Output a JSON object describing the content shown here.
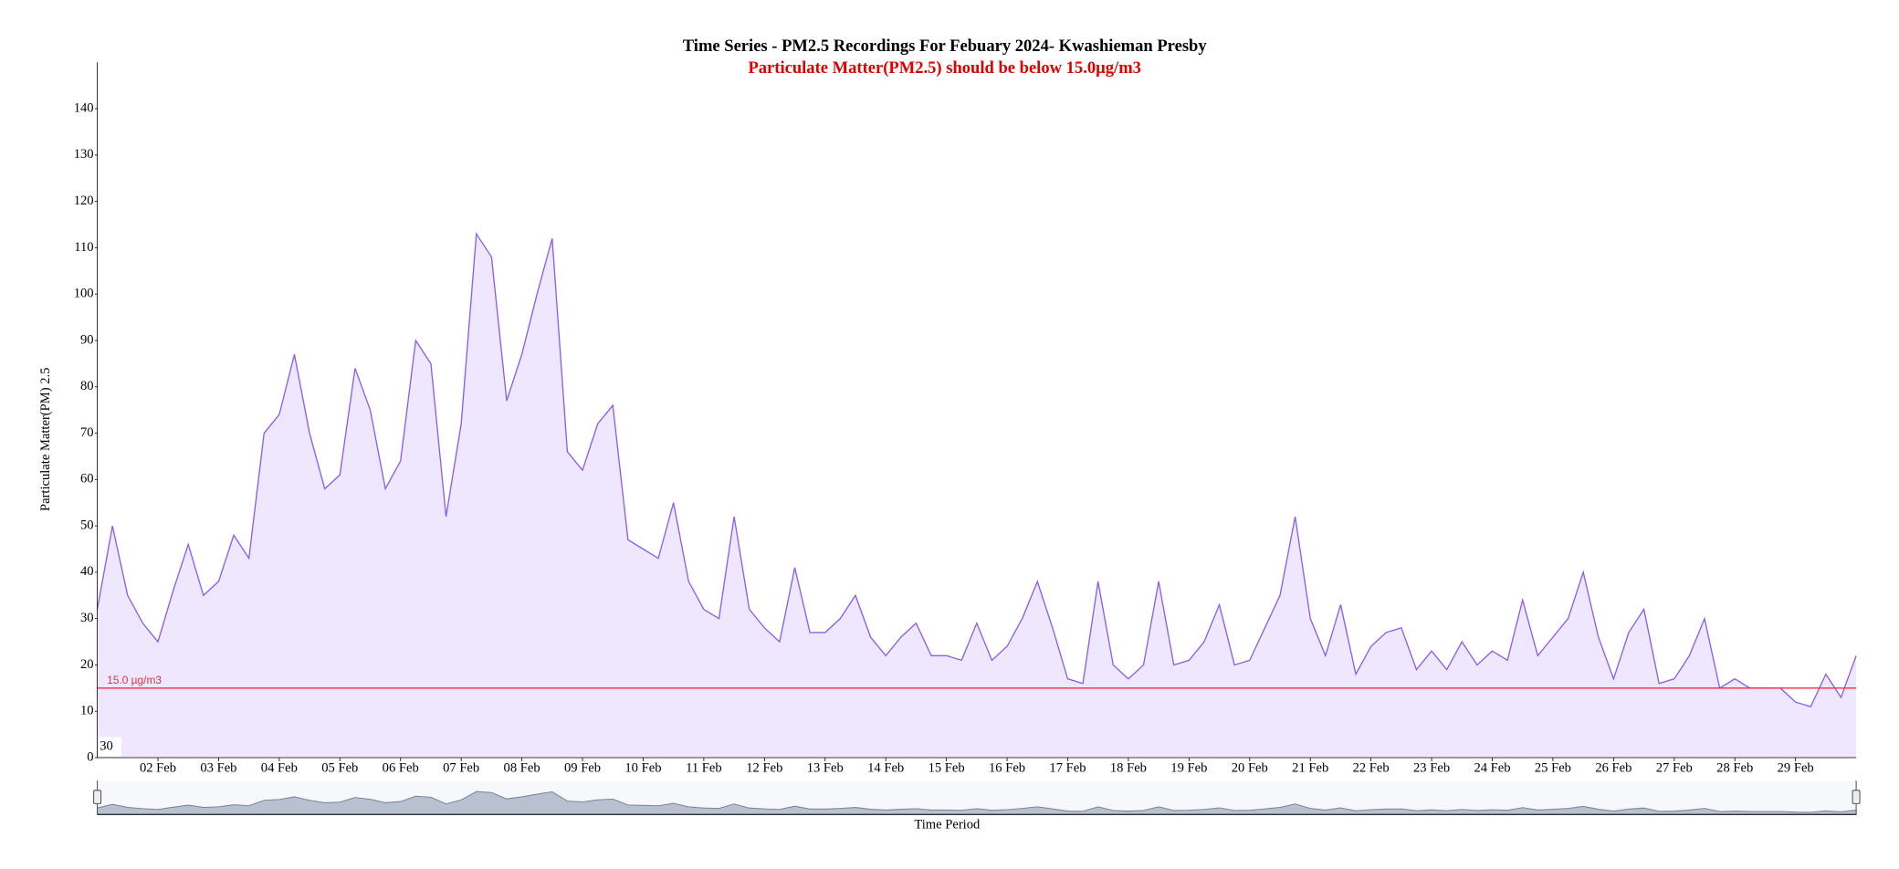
{
  "chart_data": {
    "type": "area",
    "title": "Time Series - PM2.5 Recordings For Febuary 2024- Kwashieman Presby",
    "subtitle": "Particulate Matter(PM2.5) should be below 15.0µg/m3",
    "y_label": "Particulate Matter(PM) 2.5",
    "x_label": "Time Period",
    "corner_label": "30",
    "threshold": {
      "value": 15,
      "label": "15.0 µg/m3",
      "color": "#e8314a"
    },
    "color": "#8a5cf0",
    "fill": "#efe7fd",
    "ylim": [
      0,
      150
    ],
    "yticks": [
      0,
      10,
      20,
      30,
      40,
      50,
      60,
      70,
      80,
      90,
      100,
      110,
      120,
      130,
      140
    ],
    "categories": [
      null,
      null,
      null,
      null,
      "02 Feb",
      null,
      null,
      null,
      "03 Feb",
      null,
      null,
      null,
      "04 Feb",
      null,
      null,
      null,
      "05 Feb",
      null,
      null,
      null,
      "06 Feb",
      null,
      null,
      null,
      "07 Feb",
      null,
      null,
      null,
      "08 Feb",
      null,
      null,
      null,
      "09 Feb",
      null,
      null,
      null,
      "10 Feb",
      null,
      null,
      null,
      "11 Feb",
      null,
      null,
      null,
      "12 Feb",
      null,
      null,
      null,
      "13 Feb",
      null,
      null,
      null,
      "14 Feb",
      null,
      null,
      null,
      "15 Feb",
      null,
      null,
      null,
      "16 Feb",
      null,
      null,
      null,
      "17 Feb",
      null,
      null,
      null,
      "18 Feb",
      null,
      null,
      null,
      "19 Feb",
      null,
      null,
      null,
      "20 Feb",
      null,
      null,
      null,
      "21 Feb",
      null,
      null,
      null,
      "22 Feb",
      null,
      null,
      null,
      "23 Feb",
      null,
      null,
      null,
      "24 Feb",
      null,
      null,
      null,
      "25 Feb",
      null,
      null,
      null,
      "26 Feb",
      null,
      null,
      null,
      "27 Feb",
      null,
      null,
      null,
      "28 Feb",
      null,
      null,
      null,
      "29 Feb",
      null,
      null,
      null,
      null
    ],
    "values": [
      32,
      50,
      35,
      29,
      25,
      36,
      46,
      35,
      38,
      48,
      43,
      70,
      74,
      87,
      70,
      58,
      61,
      84,
      75,
      58,
      64,
      90,
      85,
      52,
      72,
      113,
      108,
      77,
      87,
      100,
      112,
      66,
      62,
      72,
      76,
      47,
      45,
      43,
      55,
      38,
      32,
      30,
      52,
      32,
      28,
      25,
      41,
      27,
      27,
      30,
      35,
      26,
      22,
      26,
      29,
      22,
      22,
      21,
      29,
      21,
      24,
      30,
      38,
      28,
      17,
      16,
      38,
      20,
      17,
      20,
      38,
      20,
      21,
      25,
      33,
      20,
      21,
      28,
      35,
      52,
      30,
      22,
      33,
      18,
      24,
      27,
      28,
      19,
      23,
      19,
      25,
      20,
      23,
      21,
      34,
      22,
      26,
      30,
      40,
      26,
      17,
      27,
      32,
      16,
      17,
      22,
      30,
      15,
      17,
      15,
      15,
      15,
      12,
      11,
      18,
      13,
      22
    ]
  }
}
